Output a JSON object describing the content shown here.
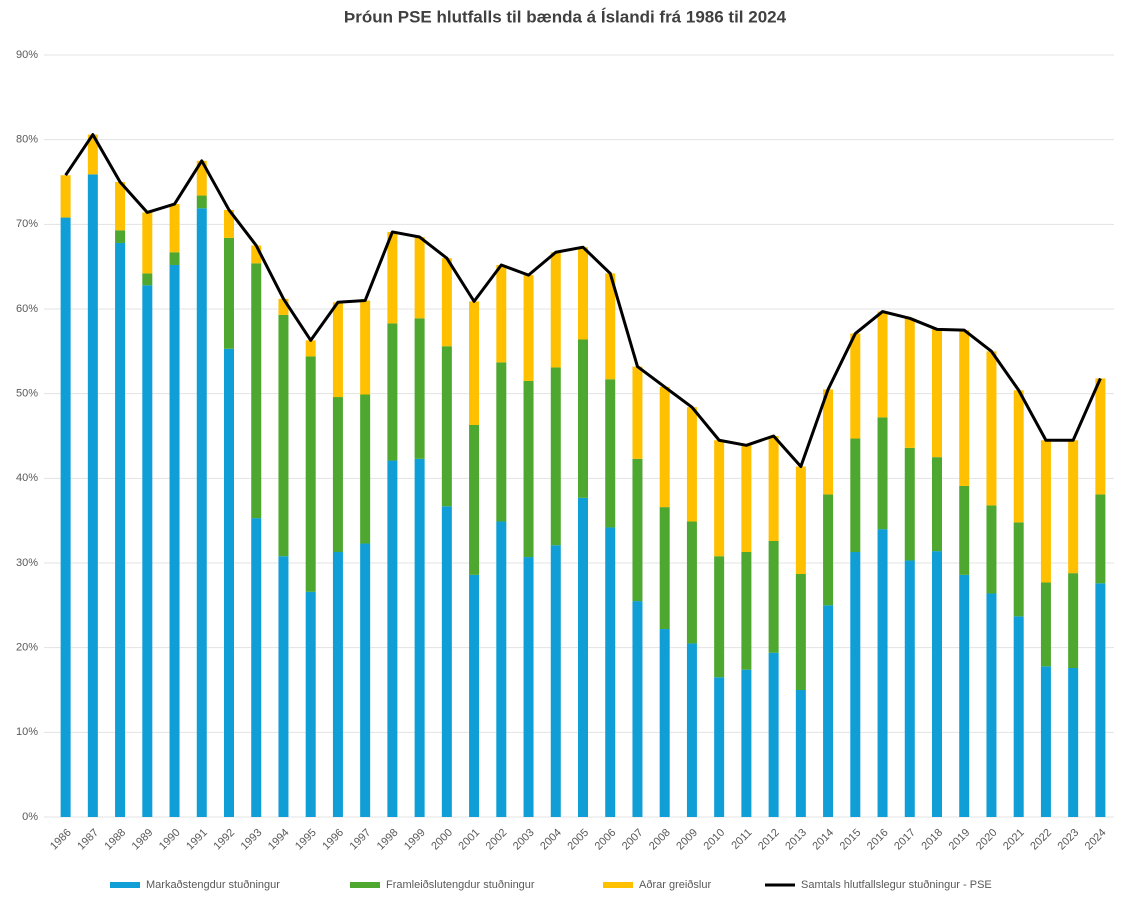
{
  "chart_data": {
    "type": "bar",
    "stacked": true,
    "title": "Þróun PSE hlutfalls til bænda á Íslandi frá 1986 til 2024",
    "categories": [
      "1986",
      "1987",
      "1988",
      "1989",
      "1990",
      "1991",
      "1992",
      "1993",
      "1994",
      "1995",
      "1996",
      "1997",
      "1998",
      "1999",
      "2000",
      "2001",
      "2002",
      "2003",
      "2004",
      "2005",
      "2006",
      "2007",
      "2008",
      "2009",
      "2010",
      "2011",
      "2012",
      "2013",
      "2014",
      "2015",
      "2016",
      "2017",
      "2018",
      "2019",
      "2020",
      "2021",
      "2022",
      "2023",
      "2024"
    ],
    "series": [
      {
        "name": "Markaðstengdur stuðningur",
        "color": "#0f9ed5",
        "type": "bar",
        "values": [
          70.8,
          75.9,
          67.8,
          62.8,
          65.2,
          71.9,
          55.3,
          35.3,
          30.8,
          26.6,
          31.3,
          32.3,
          42.1,
          42.3,
          36.7,
          28.6,
          34.9,
          30.7,
          32.1,
          37.7,
          34.2,
          25.5,
          22.2,
          20.5,
          16.5,
          17.4,
          19.4,
          15.0,
          25.0,
          31.3,
          34.0,
          30.3,
          31.4,
          28.6,
          26.4,
          23.7,
          17.8,
          17.6,
          27.6
        ]
      },
      {
        "name": "Framleiðslutengdur stuðningur",
        "color": "#4ea72e",
        "type": "bar",
        "values": [
          0,
          0,
          1.5,
          1.4,
          1.5,
          1.5,
          13.1,
          30.1,
          28.5,
          27.8,
          18.3,
          17.6,
          16.2,
          16.6,
          18.9,
          17.7,
          18.8,
          20.8,
          21.0,
          18.7,
          17.5,
          16.8,
          14.4,
          14.4,
          14.3,
          13.9,
          13.2,
          13.7,
          13.1,
          13.4,
          13.2,
          13.3,
          11.1,
          10.5,
          10.4,
          11.1,
          9.9,
          11.2,
          10.5
        ]
      },
      {
        "name": "Aðrar greiðslur",
        "color": "#ffc000",
        "type": "bar",
        "values": [
          5.0,
          4.7,
          5.7,
          7.2,
          5.7,
          4.1,
          3.3,
          2.1,
          1.9,
          1.9,
          11.2,
          11.1,
          10.8,
          9.6,
          10.4,
          14.6,
          11.5,
          12.5,
          13.6,
          10.9,
          12.5,
          10.9,
          14.2,
          13.5,
          13.7,
          12.6,
          12.4,
          12.7,
          12.4,
          12.4,
          12.5,
          15.3,
          15.1,
          18.4,
          18.2,
          15.6,
          16.8,
          15.7,
          13.7
        ]
      },
      {
        "name": "Samtals hlutfallslegur stuðningur - PSE",
        "color": "#000000",
        "type": "line",
        "values": [
          75.8,
          80.6,
          75.0,
          71.4,
          72.4,
          77.5,
          71.7,
          67.5,
          61.2,
          56.3,
          60.8,
          61.0,
          69.1,
          68.5,
          66.0,
          60.9,
          65.2,
          64.0,
          66.7,
          67.3,
          64.2,
          53.2,
          50.8,
          48.4,
          44.5,
          43.9,
          45.0,
          41.4,
          50.5,
          57.1,
          59.7,
          58.9,
          57.6,
          57.5,
          55.0,
          50.4,
          44.5,
          44.5,
          51.8
        ]
      }
    ],
    "ylim": [
      0,
      90
    ],
    "yticks": [
      {
        "value": 0,
        "label": "0%"
      },
      {
        "value": 10,
        "label": "10%"
      },
      {
        "value": 20,
        "label": "20%"
      },
      {
        "value": 30,
        "label": "30%"
      },
      {
        "value": 40,
        "label": "40%"
      },
      {
        "value": 50,
        "label": "50%"
      },
      {
        "value": 60,
        "label": "60%"
      },
      {
        "value": 70,
        "label": "70%"
      },
      {
        "value": 80,
        "label": "80%"
      },
      {
        "value": 90,
        "label": "90%"
      }
    ],
    "grid": true,
    "legend": "bottom"
  }
}
